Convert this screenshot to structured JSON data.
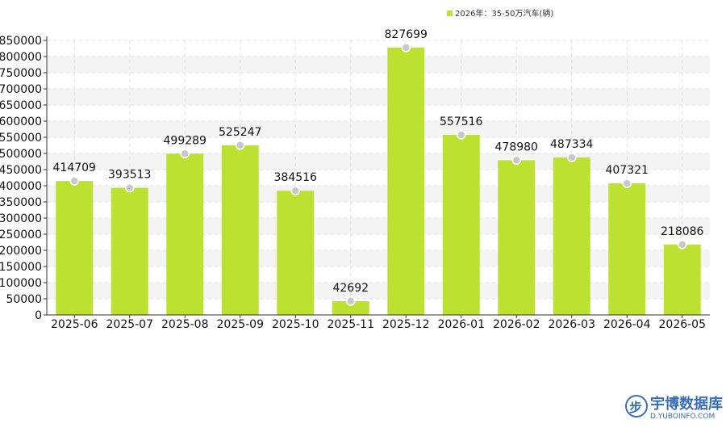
{
  "chart_data": {
    "type": "bar",
    "categories": [
      "2025-06",
      "2025-07",
      "2025-08",
      "2025-09",
      "2025-10",
      "2025-11",
      "2025-12",
      "2026-01",
      "2026-02",
      "2026-03",
      "2026-04",
      "2026-05"
    ],
    "series": [
      {
        "name": "2026年：35-50万汽车(辆)",
        "values": [
          414709,
          393513,
          499289,
          525247,
          384516,
          42692,
          827699,
          557516,
          478980,
          487334,
          407321,
          218086
        ]
      }
    ],
    "ylim": [
      0,
      850000
    ],
    "yticks": [
      0,
      50000,
      100000,
      150000,
      200000,
      250000,
      300000,
      350000,
      400000,
      450000,
      500000,
      550000,
      600000,
      650000,
      700000,
      750000,
      800000,
      850000
    ],
    "grid": true,
    "legend_position": "top-right",
    "colors": {
      "bar": "#bde130",
      "marker": "#c8c8c8",
      "grid": "#dddddd",
      "band": "#f4f4f4",
      "axis": "#333333"
    }
  },
  "watermark": {
    "name": "宇博数据库",
    "url": "D.YUBOINFO.COM",
    "logo_text": "步"
  }
}
